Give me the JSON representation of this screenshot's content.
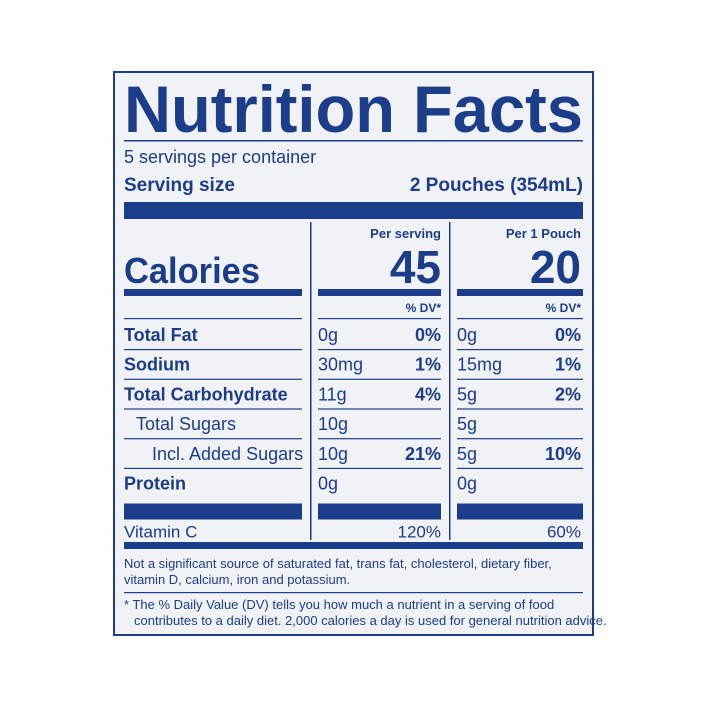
{
  "label": {
    "title": "Nutrition Facts",
    "servings": "5 servings per container",
    "serving_size_label": "Serving size",
    "serving_size_value": "2 Pouches (354mL)",
    "calories_label": "Calories",
    "columns": [
      {
        "header": "Per serving",
        "calories": "45",
        "dv_header": "% DV*"
      },
      {
        "header": "Per 1 Pouch",
        "calories": "20",
        "dv_header": "% DV*"
      }
    ],
    "nutrients": [
      {
        "name": "Total Fat",
        "values": [
          {
            "amount": "0g",
            "dv": "0%"
          },
          {
            "amount": "0g",
            "dv": "0%"
          }
        ]
      },
      {
        "name": "Sodium",
        "values": [
          {
            "amount": "30mg",
            "dv": "1%"
          },
          {
            "amount": "15mg",
            "dv": "1%"
          }
        ]
      },
      {
        "name": "Total Carbohydrate",
        "values": [
          {
            "amount": "11g",
            "dv": "4%"
          },
          {
            "amount": "5g",
            "dv": "2%"
          }
        ]
      },
      {
        "name": "Total Sugars",
        "values": [
          {
            "amount": "10g"
          },
          {
            "amount": "5g"
          }
        ]
      },
      {
        "name": "Incl. Added Sugars",
        "values": [
          {
            "amount": "10g",
            "dv": "21%"
          },
          {
            "amount": "5g",
            "dv": "10%"
          }
        ]
      },
      {
        "name": "Protein",
        "values": [
          {
            "amount": "0g"
          },
          {
            "amount": "0g"
          }
        ]
      }
    ],
    "vitamins": [
      {
        "name": "Vitamin C",
        "values": [
          "120%",
          "60%"
        ]
      }
    ],
    "footnote_lines": [
      "Not a significant source of saturated fat, trans fat, cholesterol, dietary fiber,",
      "vitamin D, calcium, iron and potassium."
    ],
    "dv_note_lines": [
      "* The % Daily Value (DV) tells you how much a nutrient in a serving of food",
      "contributes to a daily diet. 2,000 calories a day is used for general nutrition advice."
    ]
  }
}
